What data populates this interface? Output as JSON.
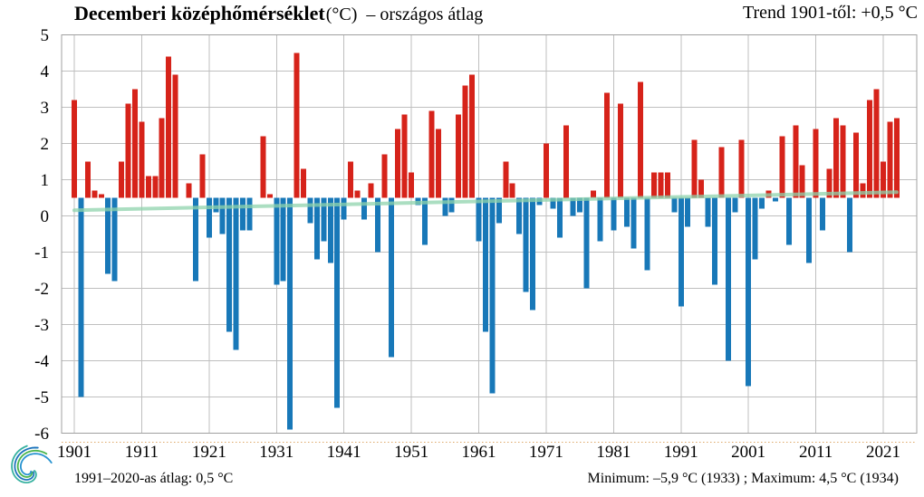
{
  "header": {
    "title_main": "Decemberi középhőmérséklet",
    "title_unit": "(°C)",
    "title_suffix": "– országos átlag",
    "trend_label": "Trend 1901-től: +0,5 °C"
  },
  "footer": {
    "baseline_note": "1991–2020-as átlag:  0,5 °C",
    "minmax_note": "Minimum:  –5,9 °C (1933) ; Maximum:  4,5 °C (1934)"
  },
  "colors": {
    "bar_above": "#d6231a",
    "bar_below": "#1878b8",
    "trend_line": "#8fd4ad",
    "grid": "#bfbfbf",
    "plot_border": "#a0a0a0",
    "axis_sub_line": "#d99a4e",
    "text": "#000000",
    "background": "#ffffff",
    "logo_palette": [
      "#38b2a0",
      "#1d74bc",
      "#4ab54e",
      "#2893d0"
    ]
  },
  "chart_data": {
    "type": "bar",
    "title": "Decemberi középhőmérséklet (°C) – országos átlag",
    "xlabel": "",
    "ylabel": "°C",
    "baseline": 0.5,
    "baseline_meaning": "1991–2020 average (0,5 °C); red bars above, blue bars below",
    "ylim": [
      -6,
      5
    ],
    "grid": true,
    "legend": null,
    "ytick_labels": [
      "5",
      "4",
      "3",
      "2",
      "1",
      "0",
      "-1",
      "-2",
      "-3",
      "-4",
      "-5",
      "-6"
    ],
    "xtick_years": [
      1901,
      1911,
      1921,
      1931,
      1941,
      1951,
      1961,
      1971,
      1981,
      1991,
      2001,
      2011,
      2021
    ],
    "minimum": {
      "value": -5.9,
      "year": 1933
    },
    "maximum": {
      "value": 4.5,
      "year": 1934
    },
    "trend_line": {
      "start_year": 1901,
      "end_year": 2023,
      "start_value": 0.15,
      "end_value": 0.65,
      "total_change_label": "+0,5 °C"
    },
    "start_year": 1901,
    "years": [
      1901,
      1902,
      1903,
      1904,
      1905,
      1906,
      1907,
      1908,
      1909,
      1910,
      1911,
      1912,
      1913,
      1914,
      1915,
      1916,
      1917,
      1918,
      1919,
      1920,
      1921,
      1922,
      1923,
      1924,
      1925,
      1926,
      1927,
      1928,
      1929,
      1930,
      1931,
      1932,
      1933,
      1934,
      1935,
      1936,
      1937,
      1938,
      1939,
      1940,
      1941,
      1942,
      1943,
      1944,
      1945,
      1946,
      1947,
      1948,
      1949,
      1950,
      1951,
      1952,
      1953,
      1954,
      1955,
      1956,
      1957,
      1958,
      1959,
      1960,
      1961,
      1962,
      1963,
      1964,
      1965,
      1966,
      1967,
      1968,
      1969,
      1970,
      1971,
      1972,
      1973,
      1974,
      1975,
      1976,
      1977,
      1978,
      1979,
      1980,
      1981,
      1982,
      1983,
      1984,
      1985,
      1986,
      1987,
      1988,
      1989,
      1990,
      1991,
      1992,
      1993,
      1994,
      1995,
      1996,
      1997,
      1998,
      1999,
      2000,
      2001,
      2002,
      2003,
      2004,
      2005,
      2006,
      2007,
      2008,
      2009,
      2010,
      2011,
      2012,
      2013,
      2014,
      2015,
      2016,
      2017,
      2018,
      2019,
      2020,
      2021,
      2022,
      2023
    ],
    "values": [
      3.2,
      -5.0,
      1.5,
      0.7,
      0.6,
      -1.6,
      -1.8,
      1.5,
      3.1,
      3.5,
      2.6,
      1.1,
      1.1,
      2.7,
      4.4,
      3.9,
      0.5,
      0.9,
      -1.8,
      1.7,
      -0.6,
      0.1,
      -0.5,
      -3.2,
      -3.7,
      -0.4,
      -0.4,
      0.5,
      2.2,
      0.6,
      -1.9,
      -1.8,
      -5.9,
      4.5,
      1.3,
      -0.2,
      -1.2,
      -0.7,
      -1.3,
      -5.3,
      -0.1,
      1.5,
      0.7,
      -0.1,
      0.9,
      -1.0,
      1.7,
      -3.9,
      2.4,
      2.8,
      1.2,
      0.3,
      -0.8,
      2.9,
      2.4,
      0.0,
      0.1,
      2.8,
      3.6,
      3.9,
      -0.7,
      -3.2,
      -4.9,
      -0.2,
      1.5,
      0.9,
      -0.5,
      -2.1,
      -2.6,
      0.3,
      2.0,
      0.2,
      -0.6,
      2.5,
      0.0,
      0.1,
      -2.0,
      0.7,
      -0.7,
      3.4,
      -0.4,
      3.1,
      -0.3,
      -0.9,
      3.7,
      -1.5,
      1.2,
      1.2,
      1.2,
      0.1,
      -2.5,
      -0.3,
      2.1,
      1.0,
      -0.3,
      -1.9,
      1.9,
      -4.0,
      0.1,
      2.1,
      -4.7,
      -1.2,
      0.2,
      0.7,
      0.4,
      2.2,
      -0.8,
      2.5,
      1.4,
      -1.3,
      2.4,
      -0.4,
      1.3,
      2.7,
      2.5,
      -1.0,
      2.3,
      0.9,
      3.2,
      3.5,
      1.5,
      2.6,
      2.7
    ]
  }
}
